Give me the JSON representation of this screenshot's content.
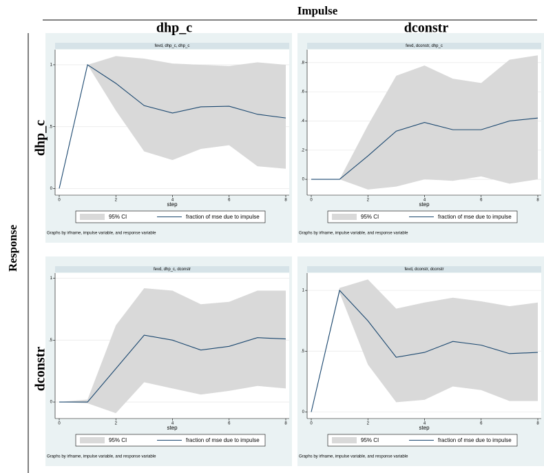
{
  "header": {
    "title": "Impulse",
    "columns": [
      "dhp_c",
      "dconstr"
    ]
  },
  "side": {
    "title": "Response",
    "rows": [
      "dhp_c",
      "dconstr"
    ]
  },
  "chart_data": [
    {
      "type": "line",
      "title": "fevd, dhp_c, dhp_c",
      "xlabel": "step",
      "note": "Graphs by irfname, impulse variable, and response variable",
      "x": [
        0,
        1,
        2,
        3,
        4,
        5,
        6,
        7,
        8
      ],
      "xlim": [
        0,
        8
      ],
      "xticks": [
        0,
        2,
        4,
        6,
        8
      ],
      "ylim": [
        -0.02,
        1.1
      ],
      "yticks": [
        0,
        {
          "value": 0.5,
          "label": ".5"
        },
        1
      ],
      "grid": true,
      "band": {
        "name": "95% CI",
        "color": "#d9d9d9",
        "upper": [
          0,
          1.0,
          1.07,
          1.05,
          1.01,
          1.0,
          0.99,
          1.02,
          1.0
        ],
        "lower": [
          0,
          1.0,
          0.63,
          0.3,
          0.23,
          0.32,
          0.35,
          0.18,
          0.16
        ]
      },
      "series": [
        {
          "name": "fraction of mse due to impulse",
          "color": "#1a476f",
          "values": [
            0,
            1,
            0.85,
            0.67,
            0.61,
            0.66,
            0.665,
            0.6,
            0.57
          ]
        }
      ]
    },
    {
      "type": "line",
      "title": "fevd, dconstr, dhp_c",
      "xlabel": "step",
      "note": "Graphs by irfname, impulse variable, and response variable",
      "x": [
        0,
        1,
        2,
        3,
        4,
        5,
        6,
        7,
        8
      ],
      "xlim": [
        0,
        8
      ],
      "xticks": [
        0,
        2,
        4,
        6,
        8
      ],
      "ylim": [
        -0.08,
        0.87
      ],
      "yticks": [
        0,
        {
          "value": 0.2,
          "label": ".2"
        },
        {
          "value": 0.4,
          "label": ".4"
        },
        {
          "value": 0.6,
          "label": ".6"
        },
        {
          "value": 0.8,
          "label": ".8"
        }
      ],
      "grid": true,
      "band": {
        "name": "95% CI",
        "color": "#d9d9d9",
        "upper": [
          0,
          0,
          0.37,
          0.71,
          0.78,
          0.69,
          0.66,
          0.82,
          0.85
        ],
        "lower": [
          0,
          0,
          -0.07,
          -0.05,
          0,
          -0.01,
          0.02,
          -0.03,
          0
        ]
      },
      "series": [
        {
          "name": "fraction of mse due to impulse",
          "color": "#1a476f",
          "values": [
            0,
            0,
            0.16,
            0.33,
            0.39,
            0.34,
            0.34,
            0.4,
            0.42
          ]
        }
      ]
    },
    {
      "type": "line",
      "title": "fevd, dhp_c, dconstr",
      "xlabel": "step",
      "note": "Graphs by irfname, impulse variable, and response variable",
      "x": [
        0,
        1,
        2,
        3,
        4,
        5,
        6,
        7,
        8
      ],
      "xlim": [
        0,
        8
      ],
      "xticks": [
        0,
        2,
        4,
        6,
        8
      ],
      "ylim": [
        -0.1,
        1.02
      ],
      "yticks": [
        0,
        {
          "value": 0.5,
          "label": ".5"
        },
        1
      ],
      "grid": true,
      "band": {
        "name": "95% CI",
        "color": "#d9d9d9",
        "upper": [
          0,
          0.02,
          0.62,
          0.92,
          0.9,
          0.79,
          0.81,
          0.9,
          0.9
        ],
        "lower": [
          0,
          -0.01,
          -0.09,
          0.16,
          0.11,
          0.06,
          0.09,
          0.13,
          0.11
        ]
      },
      "series": [
        {
          "name": "fraction of mse due to impulse",
          "color": "#1a476f",
          "values": [
            0,
            0,
            0.27,
            0.54,
            0.5,
            0.42,
            0.45,
            0.52,
            0.51
          ]
        }
      ]
    },
    {
      "type": "line",
      "title": "fevd, dconstr, dconstr",
      "xlabel": "step",
      "note": "Graphs by irfname, impulse variable, and response variable",
      "x": [
        0,
        1,
        2,
        3,
        4,
        5,
        6,
        7,
        8
      ],
      "xlim": [
        0,
        8
      ],
      "xticks": [
        0,
        2,
        4,
        6,
        8
      ],
      "ylim": [
        -0.02,
        1.12
      ],
      "yticks": [
        0,
        {
          "value": 0.5,
          "label": ".5"
        },
        1
      ],
      "grid": true,
      "band": {
        "name": "95% CI",
        "color": "#d9d9d9",
        "upper": [
          0,
          1.02,
          1.09,
          0.85,
          0.9,
          0.94,
          0.91,
          0.87,
          0.9
        ],
        "lower": [
          0,
          0.98,
          0.39,
          0.08,
          0.1,
          0.21,
          0.18,
          0.09,
          0.09
        ]
      },
      "series": [
        {
          "name": "fraction of mse due to impulse",
          "color": "#1a476f",
          "values": [
            0,
            1,
            0.75,
            0.45,
            0.49,
            0.58,
            0.55,
            0.48,
            0.49
          ]
        }
      ]
    }
  ]
}
